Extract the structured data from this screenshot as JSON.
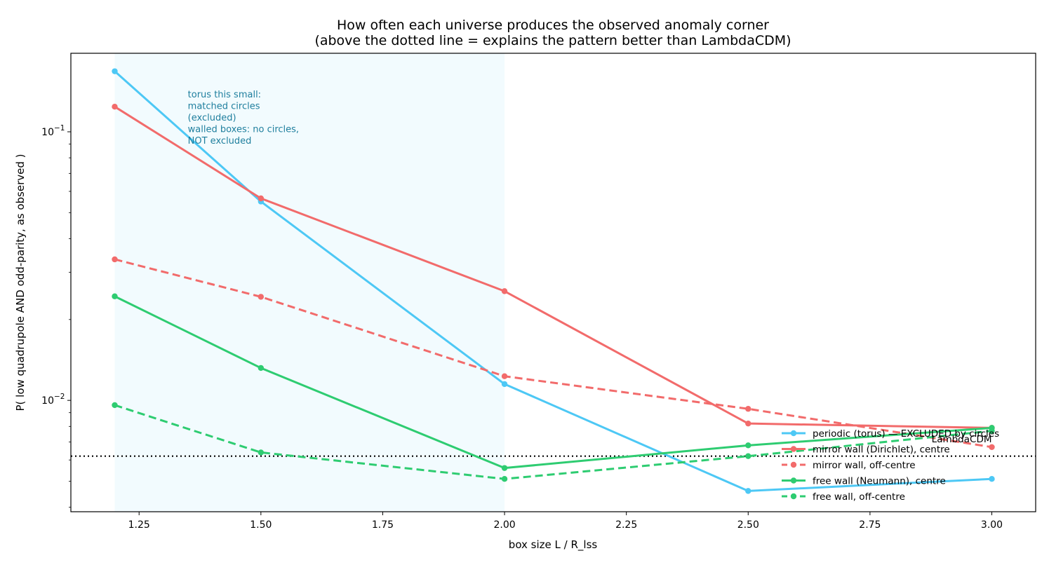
{
  "chart_data": {
    "type": "line",
    "title": "How often each universe produces the observed anomaly corner",
    "subtitle": "(above the dotted line = explains the pattern better than LambdaCDM)",
    "xlabel": "box size  L / R_lss",
    "ylabel": "P( low quadrupole AND odd-parity, as observed )",
    "yscale": "log",
    "xlim": [
      1.11,
      3.09
    ],
    "ylim": [
      0.00385,
      0.196
    ],
    "x": [
      1.2,
      1.5,
      2.0,
      2.5,
      3.0
    ],
    "x_ticks": [
      "1.25",
      "1.50",
      "1.75",
      "2.00",
      "2.25",
      "2.50",
      "2.75",
      "3.00"
    ],
    "x_tick_values": [
      1.25,
      1.5,
      1.75,
      2.0,
      2.25,
      2.5,
      2.75,
      3.0
    ],
    "y_ticks": [
      {
        "base": "10",
        "exp": "−1",
        "value": 0.1
      },
      {
        "base": "10",
        "exp": "−2",
        "value": 0.01
      }
    ],
    "grid": false,
    "legend_position": "lower-right",
    "series": [
      {
        "name": "periodic (torus) — EXCLUDED by circles",
        "color": "#4dc8f5",
        "style": "solid",
        "values": [
          0.168,
          0.055,
          0.0115,
          0.0046,
          0.0051
        ]
      },
      {
        "name": "mirror wall (Dirichlet), centre",
        "color": "#f26b6b",
        "style": "solid",
        "values": [
          0.124,
          0.0565,
          0.0255,
          0.0082,
          0.0079
        ]
      },
      {
        "name": "mirror wall, off-centre",
        "color": "#f26b6b",
        "style": "dashed",
        "values": [
          0.0335,
          0.0243,
          0.0123,
          0.0093,
          0.0067
        ]
      },
      {
        "name": "free wall (Neumann), centre",
        "color": "#2ecc71",
        "style": "solid",
        "values": [
          0.0244,
          0.0132,
          0.0056,
          0.0068,
          0.0079
        ]
      },
      {
        "name": "free wall, off-centre",
        "color": "#2ecc71",
        "style": "dashed",
        "values": [
          0.0096,
          0.0064,
          0.0051,
          0.0062,
          0.0077
        ]
      }
    ],
    "reference_line": {
      "label": "LambdaCDM",
      "value": 0.0062,
      "style": "dotted",
      "color": "#000000"
    },
    "shaded_region": {
      "x_start": 1.2,
      "x_end": 2.0,
      "color": "#f2fbfe"
    },
    "annotation": {
      "x": 1.35,
      "y": 0.124,
      "lines": [
        "torus this small:",
        "matched circles",
        "(excluded)",
        "walled boxes: no circles,",
        "NOT excluded"
      ]
    }
  }
}
